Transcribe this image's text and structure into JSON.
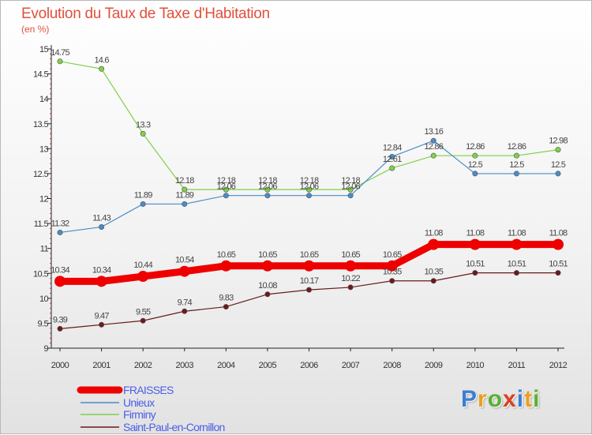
{
  "title": "Evolution du Taux de Taxe d'Habitation",
  "subtitle": "(en %)",
  "brand": {
    "letters": [
      "P",
      "r",
      "o",
      "x",
      "i",
      "t",
      "i"
    ],
    "colors": [
      "#3a7fd0",
      "#e8a020",
      "#5ab030",
      "#d84020",
      "#3a7fd0",
      "#e8a020",
      "#5ab030"
    ]
  },
  "chart_data": {
    "type": "line",
    "title": "Evolution du Taux de Taxe d'Habitation",
    "ylabel": "(en %)",
    "xlabel": "",
    "x": [
      "2000",
      "2001",
      "2002",
      "2003",
      "2004",
      "2005",
      "2006",
      "2007",
      "2008",
      "2009",
      "2010",
      "2011",
      "2012"
    ],
    "ylim": [
      9,
      15
    ],
    "yticks": [
      "9",
      "9.5",
      "10",
      "10.5",
      "11",
      "11.5",
      "12",
      "12.5",
      "13",
      "13.5",
      "14",
      "14.5",
      "15"
    ],
    "grid": false,
    "legend_position": "bottom-left",
    "series": [
      {
        "name": "FRAISSES",
        "color": "#ee0000",
        "values": [
          10.34,
          10.34,
          10.44,
          10.54,
          10.65,
          10.65,
          10.65,
          10.65,
          10.65,
          11.08,
          11.08,
          11.08,
          11.08
        ],
        "labels": [
          "10.34",
          "10.34",
          "10.44",
          "10.54",
          "10.65",
          "10.65",
          "10.65",
          "10.65",
          "10.65",
          "11.08",
          "11.08",
          "11.08",
          "11.08"
        ]
      },
      {
        "name": "Unieux",
        "color": "#4a8cc8",
        "values": [
          11.32,
          11.43,
          11.89,
          11.89,
          12.06,
          12.06,
          12.06,
          12.06,
          12.84,
          13.16,
          12.5,
          12.5,
          12.5
        ],
        "labels": [
          "11.32",
          "11.43",
          "11.89",
          "11.89",
          "12.06",
          "12.06",
          "12.06",
          "12.06",
          "12.84",
          "13.16",
          "12.5",
          "12.5",
          "12.5"
        ]
      },
      {
        "name": "Firminy",
        "color": "#7fd14a",
        "values": [
          14.75,
          14.6,
          13.3,
          12.18,
          12.18,
          12.18,
          12.18,
          12.18,
          12.61,
          12.86,
          12.86,
          12.86,
          12.98
        ],
        "labels": [
          "14.75",
          "14.6",
          "13.3",
          "12.18",
          "12.18",
          "12.18",
          "12.18",
          "12.18",
          "12.61",
          "12.86",
          "12.86",
          "12.86",
          "12.98"
        ]
      },
      {
        "name": "Saint-Paul-en-Cornillon",
        "color": "#6b1a1a",
        "values": [
          9.39,
          9.47,
          9.55,
          9.74,
          9.83,
          10.08,
          10.17,
          10.22,
          10.35,
          10.35,
          10.51,
          10.51,
          10.51
        ],
        "labels": [
          "9.39",
          "9.47",
          "9.55",
          "9.74",
          "9.83",
          "10.08",
          "10.17",
          "10.22",
          "10.35",
          "10.35",
          "10.51",
          "10.51",
          "10.51"
        ]
      }
    ]
  }
}
